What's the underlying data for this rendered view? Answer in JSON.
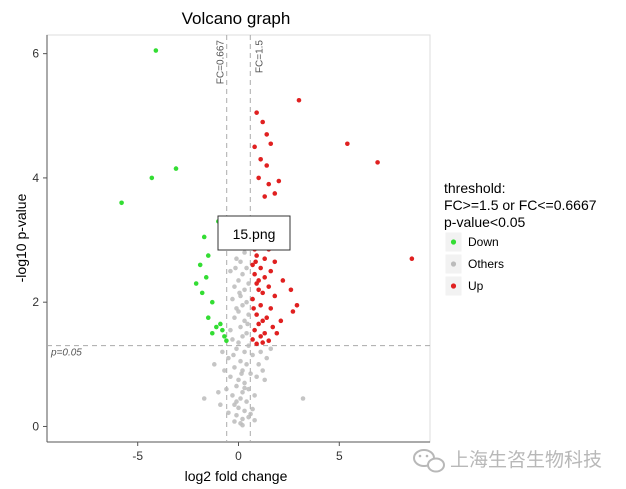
{
  "chart_data": {
    "type": "scatter",
    "title": "Volcano graph",
    "xlabel": "log2 fold change",
    "ylabel": "-log10 p-value",
    "xlim": [
      -9.5,
      9.5
    ],
    "ylim": [
      -0.25,
      6.3
    ],
    "x_ticks": [
      -5,
      0,
      5
    ],
    "y_ticks": [
      0,
      2,
      4,
      6
    ],
    "grid": false,
    "thresholds": {
      "fc_low": {
        "x": -0.585,
        "label": "FC=0.667"
      },
      "fc_high": {
        "x": 0.585,
        "label": "FC=1.5"
      },
      "p": {
        "y": 1.301,
        "label": "p=0.05"
      }
    },
    "legend": {
      "title_lines": [
        "threshold:",
        "FC>=1.5 or FC<=0.6667",
        "p-value<0.05"
      ],
      "placement": "right",
      "entries": [
        {
          "name": "Down",
          "color": "#33dd33"
        },
        {
          "name": "Others",
          "color": "#bbbbbb"
        },
        {
          "name": "Up",
          "color": "#e02020"
        }
      ]
    },
    "series": [
      {
        "name": "Down",
        "color": "#33dd33",
        "points": [
          [
            -4.1,
            6.05
          ],
          [
            -4.3,
            4.0
          ],
          [
            -3.1,
            4.15
          ],
          [
            -5.8,
            3.6
          ],
          [
            -1.0,
            3.3
          ],
          [
            -1.7,
            3.05
          ],
          [
            -1.5,
            2.75
          ],
          [
            -1.9,
            2.6
          ],
          [
            -1.6,
            2.4
          ],
          [
            -2.1,
            2.3
          ],
          [
            -1.8,
            2.15
          ],
          [
            -1.3,
            2.0
          ],
          [
            -1.5,
            1.75
          ],
          [
            -0.9,
            1.65
          ],
          [
            -0.8,
            1.55
          ],
          [
            -1.1,
            1.6
          ],
          [
            -0.7,
            1.45
          ],
          [
            -1.3,
            1.5
          ],
          [
            -0.6,
            1.38
          ]
        ]
      },
      {
        "name": "Up",
        "color": "#e02020",
        "points": [
          [
            3.0,
            5.25
          ],
          [
            5.4,
            4.55
          ],
          [
            6.9,
            4.25
          ],
          [
            8.6,
            2.7
          ],
          [
            0.9,
            5.05
          ],
          [
            1.2,
            4.9
          ],
          [
            1.4,
            4.7
          ],
          [
            0.8,
            4.5
          ],
          [
            1.6,
            4.55
          ],
          [
            1.1,
            4.3
          ],
          [
            1.4,
            4.2
          ],
          [
            1.0,
            4.0
          ],
          [
            1.5,
            3.9
          ],
          [
            2.0,
            3.95
          ],
          [
            1.8,
            3.75
          ],
          [
            1.3,
            3.7
          ],
          [
            2.4,
            3.3
          ],
          [
            1.7,
            3.2
          ],
          [
            1.2,
            3.1
          ],
          [
            0.7,
            3.05
          ],
          [
            1.0,
            2.9
          ],
          [
            1.5,
            2.85
          ],
          [
            0.9,
            2.75
          ],
          [
            1.3,
            2.7
          ],
          [
            1.8,
            2.65
          ],
          [
            1.1,
            2.55
          ],
          [
            1.6,
            2.5
          ],
          [
            0.8,
            2.45
          ],
          [
            1.3,
            2.4
          ],
          [
            2.6,
            2.2
          ],
          [
            2.2,
            2.35
          ],
          [
            0.9,
            2.3
          ],
          [
            1.5,
            2.25
          ],
          [
            1.2,
            2.15
          ],
          [
            1.8,
            2.1
          ],
          [
            0.7,
            2.05
          ],
          [
            1.1,
            1.95
          ],
          [
            1.6,
            1.9
          ],
          [
            2.9,
            1.95
          ],
          [
            2.7,
            1.85
          ],
          [
            0.9,
            1.8
          ],
          [
            1.4,
            1.75
          ],
          [
            2.1,
            1.7
          ],
          [
            1.0,
            1.65
          ],
          [
            1.7,
            1.6
          ],
          [
            0.8,
            1.55
          ],
          [
            1.3,
            1.5
          ],
          [
            1.9,
            1.5
          ],
          [
            1.1,
            1.45
          ],
          [
            0.7,
            1.4
          ],
          [
            1.5,
            1.38
          ],
          [
            1.2,
            1.35
          ],
          [
            0.9,
            1.33
          ],
          [
            0.7,
            2.6
          ],
          [
            0.8,
            2.85
          ],
          [
            1.0,
            2.35
          ],
          [
            0.75,
            1.9
          ],
          [
            1.0,
            2.2
          ],
          [
            1.2,
            1.7
          ],
          [
            0.85,
            2.65
          ]
        ]
      },
      {
        "name": "Others",
        "color": "#bbbbbb",
        "points": [
          [
            0.1,
            0.05
          ],
          [
            0.2,
            0.12
          ],
          [
            -0.1,
            0.18
          ],
          [
            0.3,
            0.25
          ],
          [
            0.0,
            0.3
          ],
          [
            -0.2,
            0.35
          ],
          [
            0.4,
            0.4
          ],
          [
            0.1,
            0.45
          ],
          [
            -0.3,
            0.5
          ],
          [
            0.2,
            0.55
          ],
          [
            0.5,
            0.6
          ],
          [
            -0.1,
            0.65
          ],
          [
            0.3,
            0.7
          ],
          [
            0.0,
            0.75
          ],
          [
            -0.4,
            0.8
          ],
          [
            0.6,
            0.85
          ],
          [
            0.2,
            0.9
          ],
          [
            -0.2,
            0.95
          ],
          [
            0.4,
            1.0
          ],
          [
            0.1,
            1.05
          ],
          [
            -0.5,
            1.1
          ],
          [
            0.7,
            1.15
          ],
          [
            0.3,
            1.2
          ],
          [
            -0.1,
            1.25
          ],
          [
            0.5,
            1.3
          ],
          [
            0.0,
            1.35
          ],
          [
            -0.3,
            1.4
          ],
          [
            0.2,
            1.45
          ],
          [
            0.4,
            1.5
          ],
          [
            -0.4,
            1.55
          ],
          [
            0.1,
            1.6
          ],
          [
            0.3,
            1.7
          ],
          [
            -0.2,
            1.75
          ],
          [
            0.5,
            1.8
          ],
          [
            0.0,
            1.85
          ],
          [
            -0.1,
            1.9
          ],
          [
            0.2,
            1.95
          ],
          [
            0.4,
            2.0
          ],
          [
            -0.3,
            2.05
          ],
          [
            0.1,
            2.1
          ],
          [
            0.3,
            2.2
          ],
          [
            -0.2,
            2.25
          ],
          [
            0.5,
            2.3
          ],
          [
            0.0,
            2.35
          ],
          [
            0.2,
            2.45
          ],
          [
            -0.4,
            2.5
          ],
          [
            0.4,
            2.55
          ],
          [
            0.1,
            2.65
          ],
          [
            -0.1,
            2.7
          ],
          [
            0.3,
            2.8
          ],
          [
            0.0,
            2.9
          ],
          [
            0.2,
            3.0
          ],
          [
            0.4,
            3.1
          ],
          [
            -0.2,
            0.08
          ],
          [
            0.5,
            0.15
          ],
          [
            -0.5,
            0.22
          ],
          [
            0.7,
            0.28
          ],
          [
            0.8,
            0.5
          ],
          [
            -0.6,
            0.6
          ],
          [
            0.9,
            0.8
          ],
          [
            1.0,
            1.0
          ],
          [
            -0.7,
            0.9
          ],
          [
            1.1,
            1.2
          ],
          [
            -0.8,
            1.2
          ],
          [
            0.6,
            0.2
          ],
          [
            -1.0,
            0.55
          ],
          [
            1.3,
            0.75
          ],
          [
            1.2,
            0.9
          ],
          [
            -1.2,
            1.0
          ],
          [
            0.8,
            0.1
          ],
          [
            -0.9,
            0.35
          ],
          [
            1.4,
            1.1
          ],
          [
            -1.7,
            0.45
          ],
          [
            1.6,
            1.25
          ],
          [
            3.2,
            0.45
          ],
          [
            0.2,
            0.02
          ],
          [
            -0.1,
            0.4
          ],
          [
            0.3,
            0.62
          ],
          [
            0.15,
            0.85
          ],
          [
            -0.25,
            1.15
          ],
          [
            0.45,
            1.65
          ],
          [
            0.05,
            2.15
          ],
          [
            -0.15,
            2.55
          ],
          [
            0.35,
            2.95
          ],
          [
            0.25,
            3.2
          ]
        ]
      }
    ]
  },
  "overlay": {
    "label": "15.png"
  },
  "watermark": {
    "text": "上海生咨生物科技"
  }
}
